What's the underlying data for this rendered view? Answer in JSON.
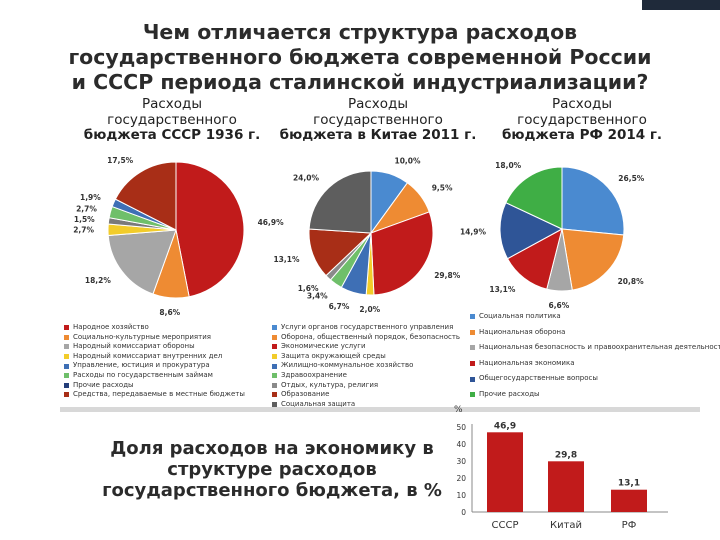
{
  "title": {
    "line1": "Чем отличается структура расходов",
    "line2": "государственного бюджета современной России",
    "line3": "и СССР периода сталинской индустриализации?"
  },
  "colors": {
    "red": "#c11b1b",
    "dark_red": "#a82e17",
    "orange": "#ee8b33",
    "blue": "#4a8ad0",
    "navy": "#243e7a",
    "green": "#55a24a",
    "bright_green": "#3fae45",
    "gray": "#a6a6a6",
    "dark_gray": "#6a6a6a",
    "yellow": "#f2cc2a",
    "bar": "#c11b1b"
  },
  "chart_data": [
    {
      "type": "pie",
      "title": {
        "line1": "Расходы",
        "line2": "государственного",
        "line3": "бюджета СССР 1936 г."
      },
      "slices": [
        {
          "value": 46.9,
          "label": "46,9%",
          "color": "#c11b1b"
        },
        {
          "value": 8.6,
          "label": "8,6%",
          "color": "#ee8b33"
        },
        {
          "value": 18.2,
          "label": "18,2%",
          "color": "#a6a6a6"
        },
        {
          "value": 2.7,
          "label": "2,7%",
          "color": "#f2cc2a"
        },
        {
          "value": 1.5,
          "label": "1,5%",
          "color": "#7a7a7a"
        },
        {
          "value": 2.7,
          "label": "2,7%",
          "color": "#6fbf6a"
        },
        {
          "value": 1.9,
          "label": "1,9%",
          "color": "#3e6fb5"
        },
        {
          "value": 17.5,
          "label": "17,5%",
          "color": "#a82e17"
        }
      ],
      "legend": [
        {
          "text": "Народное хозяйство",
          "color": "#c11b1b"
        },
        {
          "text": "Социально-культурные мероприятия",
          "color": "#ee8b33"
        },
        {
          "text": "Народный комиссариат обороны",
          "color": "#a6a6a6"
        },
        {
          "text": "Народный комиссариат внутренних дел",
          "color": "#f2cc2a"
        },
        {
          "text": "Управление, юстиция и прокуратура",
          "color": "#3e6fb5"
        },
        {
          "text": "Расходы по государственным займам",
          "color": "#6fbf6a"
        },
        {
          "text": "Прочие расходы",
          "color": "#243e7a"
        },
        {
          "text": "Средства, передаваемые в местные бюджеты",
          "color": "#a82e17"
        }
      ]
    },
    {
      "type": "pie",
      "title": {
        "line1": "Расходы",
        "line2": "государственного",
        "line3": "бюджета в Китае 2011 г."
      },
      "slices": [
        {
          "value": 10.0,
          "label": "10,0%",
          "color": "#4a8ad0"
        },
        {
          "value": 9.5,
          "label": "9,5%",
          "color": "#ee8b33"
        },
        {
          "value": 29.8,
          "label": "29,8%",
          "color": "#c11b1b"
        },
        {
          "value": 2.0,
          "label": "2,0%",
          "color": "#f2cc2a"
        },
        {
          "value": 6.7,
          "label": "6,7%",
          "color": "#3e6fb5"
        },
        {
          "value": 3.4,
          "label": "3,4%",
          "color": "#6fbf6a"
        },
        {
          "value": 1.6,
          "label": "1,6%",
          "color": "#8a8a8a"
        },
        {
          "value": 13.1,
          "label": "13,1%",
          "color": "#a82e17"
        },
        {
          "value": 24.0,
          "label": "24,0%",
          "color": "#5e5e5e"
        }
      ],
      "legend": [
        {
          "text": "Услуги органов государственного управления",
          "color": "#4a8ad0"
        },
        {
          "text": "Оборона, общественный порядок, безопасность",
          "color": "#ee8b33"
        },
        {
          "text": "Экономические услуги",
          "color": "#c11b1b"
        },
        {
          "text": "Защита окружающей среды",
          "color": "#f2cc2a"
        },
        {
          "text": "Жилищно-коммунальное хозяйство",
          "color": "#3e6fb5"
        },
        {
          "text": "Здравоохранение",
          "color": "#6fbf6a"
        },
        {
          "text": "Отдых, культура, религия",
          "color": "#8a8a8a"
        },
        {
          "text": "Образование",
          "color": "#a82e17"
        },
        {
          "text": "Социальная защита",
          "color": "#5e5e5e"
        }
      ]
    },
    {
      "type": "pie",
      "title": {
        "line1": "Расходы",
        "line2": "государственного",
        "line3": "бюджета РФ 2014 г."
      },
      "slices": [
        {
          "value": 26.5,
          "label": "26,5%",
          "color": "#4a8ad0"
        },
        {
          "value": 20.8,
          "label": "20,8%",
          "color": "#ee8b33"
        },
        {
          "value": 6.6,
          "label": "6,6%",
          "color": "#a6a6a6"
        },
        {
          "value": 13.1,
          "label": "13,1%",
          "color": "#c11b1b"
        },
        {
          "value": 14.9,
          "label": "14,9%",
          "color": "#2f5597"
        },
        {
          "value": 18.0,
          "label": "18,0%",
          "color": "#3fae45"
        }
      ],
      "legend": [
        {
          "text": "Социальная политика",
          "color": "#4a8ad0"
        },
        {
          "text": "Национальная оборона",
          "color": "#ee8b33"
        },
        {
          "text": "Национальная безопасность и правоохранительная деятельность",
          "color": "#a6a6a6"
        },
        {
          "text": "Национальная экономика",
          "color": "#c11b1b"
        },
        {
          "text": "Общегосударственные вопросы",
          "color": "#2f5597"
        },
        {
          "text": "Прочие расходы",
          "color": "#3fae45"
        }
      ]
    },
    {
      "type": "bar",
      "title": {
        "line1": "Доля расходов на экономику в",
        "line2": "структуре расходов",
        "line3": "государственного бюджета, в %"
      },
      "ylabel": "%",
      "ylim": [
        0,
        50
      ],
      "yticks": [
        0,
        10,
        20,
        30,
        40,
        50
      ],
      "categories": [
        "СССР",
        "Китай",
        "РФ"
      ],
      "values": [
        46.9,
        29.8,
        13.1
      ],
      "value_labels": [
        "46,9",
        "29,8",
        "13,1"
      ]
    }
  ]
}
